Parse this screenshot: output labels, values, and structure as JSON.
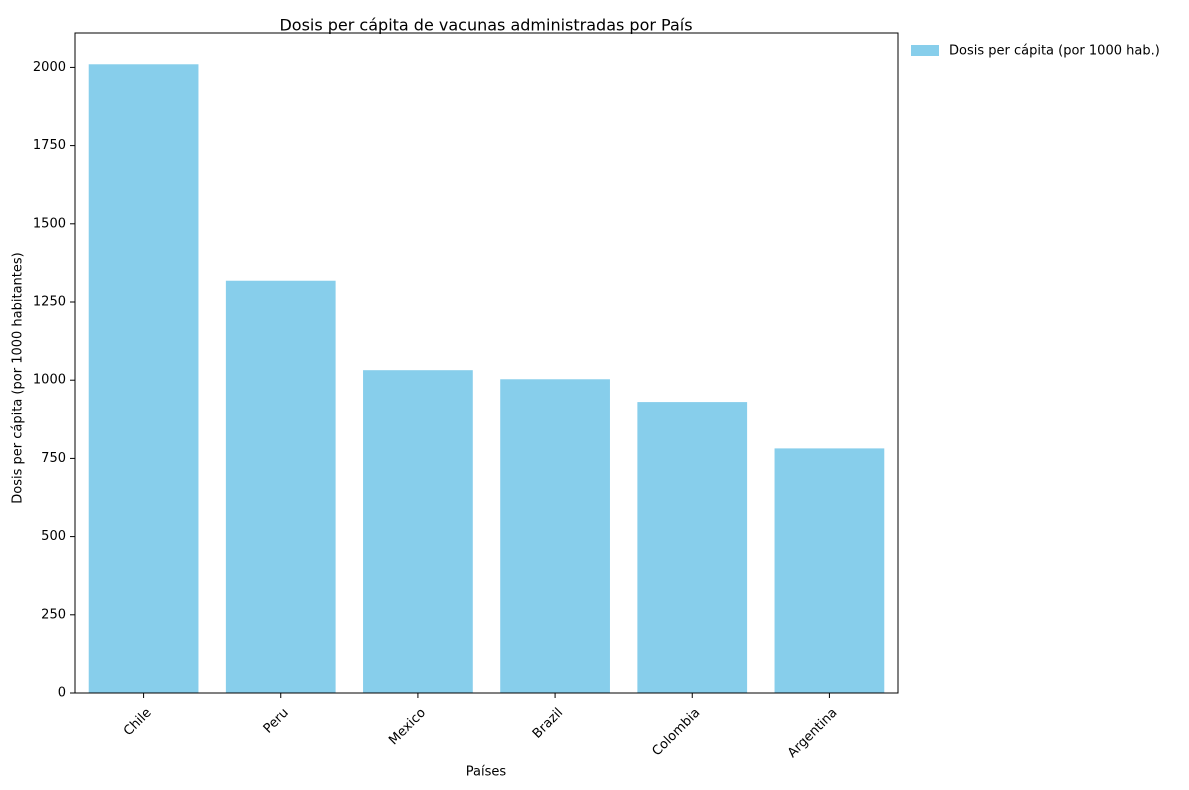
{
  "chart_data": {
    "type": "bar",
    "title": "Dosis per cápita de vacunas administradas por País",
    "xlabel": "Países",
    "ylabel": "Dosis per cápita (por 1000 habitantes)",
    "categories": [
      "Chile",
      "Peru",
      "Mexico",
      "Brazil",
      "Colombia",
      "Argentina"
    ],
    "series": [
      {
        "name": "Dosis per cápita (por 1000 hab.)",
        "values": [
          2010,
          1318,
          1032,
          1003,
          930,
          782
        ],
        "color": "#87CEEB"
      }
    ],
    "yticks": [
      0,
      250,
      500,
      750,
      1000,
      1250,
      1500,
      1750,
      2000
    ],
    "ylim": [
      0,
      2110
    ],
    "grid": false,
    "legend_position": "outside-top-right",
    "xtick_rotation": -45
  }
}
